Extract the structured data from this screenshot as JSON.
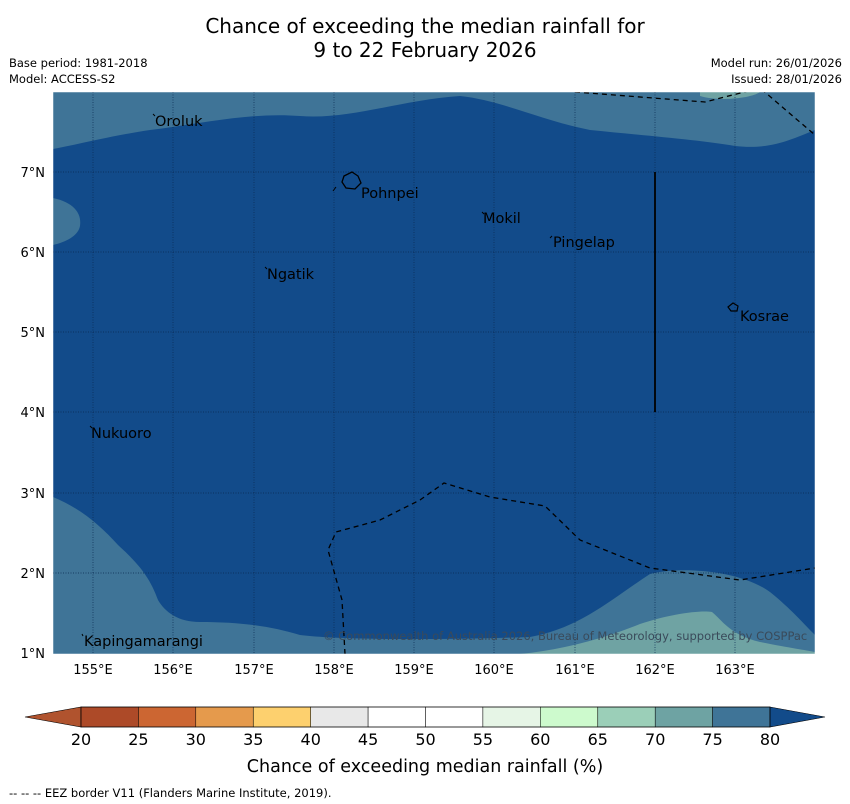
{
  "title": {
    "line1": "Chance of exceeding the median rainfall for",
    "line2": "9 to 22 February 2026"
  },
  "meta_left": {
    "base_period": "Base period: 1981-2018",
    "model": "Model: ACCESS-S2"
  },
  "meta_right": {
    "model_run": "Model run: 26/01/2026",
    "issued": "Issued: 28/01/2026"
  },
  "map": {
    "lon_labels": [
      "155°E",
      "156°E",
      "157°E",
      "158°E",
      "159°E",
      "160°E",
      "161°E",
      "162°E",
      "163°E"
    ],
    "lat_labels": [
      "7°N",
      "6°N",
      "5°N",
      "4°N",
      "3°N",
      "2°N",
      "1°N"
    ],
    "places": [
      {
        "name": "Oroluk"
      },
      {
        "name": "Pohnpei"
      },
      {
        "name": "Mokil"
      },
      {
        "name": "Pingelap"
      },
      {
        "name": "Ngatik"
      },
      {
        "name": "Kosrae"
      },
      {
        "name": "Nukuoro"
      },
      {
        "name": "Kapingamarangi"
      }
    ],
    "copyright": "© Commonwealth of Australia 2026, Bureau of Meteorology, supported by COSPPac",
    "colors": {
      "band_80_plus": "#124b8a",
      "band_75_80": "#3f7497",
      "band_70_75": "#6fa3a3",
      "land": "#124b8a"
    }
  },
  "colorbar": {
    "ticks": [
      "20",
      "25",
      "30",
      "35",
      "40",
      "45",
      "50",
      "55",
      "60",
      "65",
      "70",
      "75",
      "80"
    ],
    "colors": [
      "#ad4a28",
      "#cc6632",
      "#e59a4c",
      "#fdd06e",
      "#e8e8e8",
      "#ffffff",
      "#ffffff",
      "#e6f5e6",
      "#cdfacd",
      "#9bcfb8",
      "#6ea3a3",
      "#3f7497",
      "#124b8a"
    ],
    "label": "Chance of exceeding median rainfall (%)"
  },
  "footer": "--  --  -- EEZ border V11 (Flanders Marine Institute, 2019)."
}
